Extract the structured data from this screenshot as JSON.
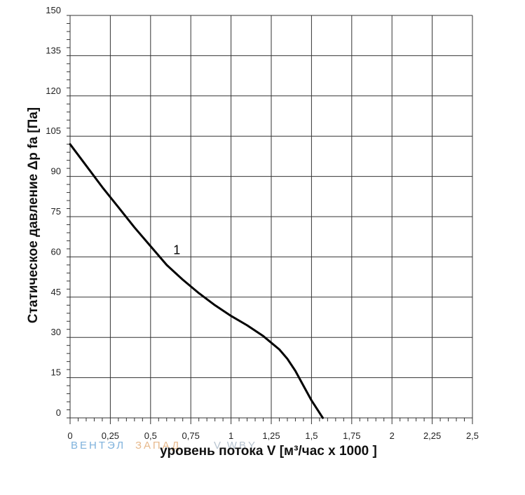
{
  "chart_data": {
    "type": "line",
    "xlabel": "уровень потока  V [м³/час x 1000 ]",
    "ylabel": "Статическое давление  Δp fa [Па]",
    "xlim": [
      0,
      2.5
    ],
    "ylim": [
      0,
      150
    ],
    "grid": true,
    "x_ticks": [
      0,
      0.25,
      0.5,
      0.75,
      1,
      1.25,
      1.5,
      1.75,
      2,
      2.25,
      2.5
    ],
    "x_tick_labels": [
      "0",
      "0,25",
      "0,5",
      "0,75",
      "1",
      "1,25",
      "1,5",
      "1,75",
      "2",
      "2,25",
      "2,5"
    ],
    "y_ticks": [
      0,
      15,
      30,
      45,
      60,
      75,
      90,
      105,
      120,
      135,
      150
    ],
    "y_tick_labels": [
      "0",
      "15",
      "30",
      "45",
      "60",
      "75",
      "90",
      "105",
      "120",
      "135",
      "150"
    ],
    "series": [
      {
        "name": "1",
        "x": [
          0,
          0.1,
          0.2,
          0.3,
          0.4,
          0.5,
          0.6,
          0.7,
          0.8,
          0.9,
          1.0,
          1.1,
          1.2,
          1.3,
          1.35,
          1.4,
          1.45,
          1.5,
          1.57
        ],
        "y": [
          102,
          94,
          86,
          78.5,
          71,
          64,
          57,
          51.5,
          46.5,
          42,
          38,
          34.5,
          30.5,
          25.5,
          22,
          17.5,
          12,
          6.5,
          0
        ]
      }
    ],
    "annotations": [
      {
        "text": "1",
        "x": 0.65,
        "y": 61
      }
    ]
  },
  "watermark": {
    "left": "ВЕНТЭЛ",
    "mid": "ЗАПАД",
    "right": "V.WBY"
  },
  "colors": {
    "line": "#000000",
    "grid": "#333333",
    "watermark_left": "#7fb2dc",
    "watermark_mid": "#e7b98c",
    "watermark_right": "#b8c4d0"
  }
}
